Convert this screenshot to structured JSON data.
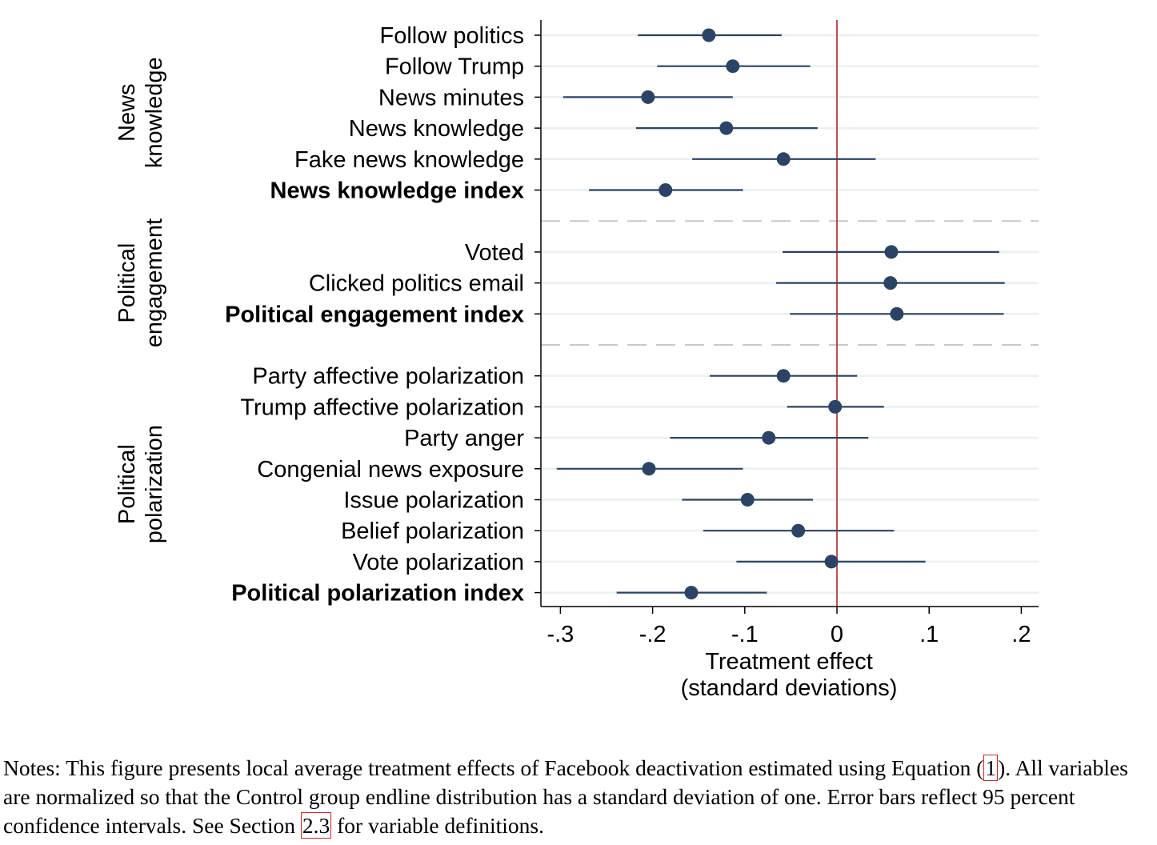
{
  "chart_data": {
    "type": "scatter",
    "subtype": "coefficient-plot-with-95-ci",
    "xlabel_lines": [
      "Treatment effect",
      "(standard deviations)"
    ],
    "xlim": [
      -0.32,
      0.22
    ],
    "xticks": [
      -0.3,
      -0.2,
      -0.1,
      0,
      0.1,
      0.2
    ],
    "xtick_labels": [
      "-.3",
      "-.2",
      "-.1",
      "0",
      ".1",
      ".2"
    ],
    "reference_line_x": 0,
    "reference_line_color": "#b22222",
    "marker_color": "#2b4466",
    "grid": "horizontal",
    "groups": [
      {
        "label_lines": [
          "News",
          "knowledge"
        ],
        "rows": [
          {
            "label": "Follow politics",
            "estimate": -0.139,
            "ci": [
              -0.216,
              -0.06
            ],
            "bold": false
          },
          {
            "label": "Follow Trump",
            "estimate": -0.113,
            "ci": [
              -0.195,
              -0.029
            ],
            "bold": false
          },
          {
            "label": "News minutes",
            "estimate": -0.205,
            "ci": [
              -0.297,
              -0.113
            ],
            "bold": false
          },
          {
            "label": "News knowledge",
            "estimate": -0.12,
            "ci": [
              -0.218,
              -0.021
            ],
            "bold": false
          },
          {
            "label": "Fake news knowledge",
            "estimate": -0.058,
            "ci": [
              -0.157,
              0.042
            ],
            "bold": false
          },
          {
            "label": "News knowledge index",
            "estimate": -0.186,
            "ci": [
              -0.269,
              -0.102
            ],
            "bold": true
          }
        ]
      },
      {
        "label_lines": [
          "Political",
          "engagement"
        ],
        "rows": [
          {
            "label": "Voted",
            "estimate": 0.059,
            "ci": [
              -0.059,
              0.176
            ],
            "bold": false
          },
          {
            "label": "Clicked politics email",
            "estimate": 0.058,
            "ci": [
              -0.066,
              0.182
            ],
            "bold": false
          },
          {
            "label": "Political engagement index",
            "estimate": 0.065,
            "ci": [
              -0.051,
              0.181
            ],
            "bold": true
          }
        ]
      },
      {
        "label_lines": [
          "Political",
          "polarization"
        ],
        "rows": [
          {
            "label": "Party affective polarization",
            "estimate": -0.058,
            "ci": [
              -0.138,
              0.022
            ],
            "bold": false
          },
          {
            "label": "Trump affective polarization",
            "estimate": -0.002,
            "ci": [
              -0.054,
              0.051
            ],
            "bold": false
          },
          {
            "label": "Party anger",
            "estimate": -0.074,
            "ci": [
              -0.181,
              0.034
            ],
            "bold": false
          },
          {
            "label": "Congenial news exposure",
            "estimate": -0.204,
            "ci": [
              -0.304,
              -0.102
            ],
            "bold": false
          },
          {
            "label": "Issue polarization",
            "estimate": -0.097,
            "ci": [
              -0.168,
              -0.026
            ],
            "bold": false
          },
          {
            "label": "Belief polarization",
            "estimate": -0.042,
            "ci": [
              -0.145,
              0.062
            ],
            "bold": false
          },
          {
            "label": "Vote polarization",
            "estimate": -0.006,
            "ci": [
              -0.109,
              0.096
            ],
            "bold": false
          },
          {
            "label": "Political polarization index",
            "estimate": -0.158,
            "ci": [
              -0.239,
              -0.076
            ],
            "bold": true
          }
        ]
      }
    ]
  },
  "notes": {
    "part1": "Notes: This figure presents local average treatment effects of Facebook deactivation estimated using Equation (",
    "ref1": "1",
    "part2": "). All variables are normalized so that the Control group endline distribution has a standard deviation of one. Error bars reflect 95 percent confidence intervals. See Section ",
    "ref2": "2.3",
    "part3": " for variable definitions."
  }
}
